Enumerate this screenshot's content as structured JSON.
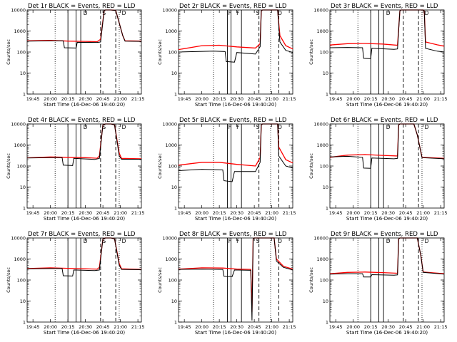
{
  "chart_data": {
    "type": "line",
    "layout": "3x3 grid",
    "x_tick_labels": [
      "19:45",
      "20:00",
      "20:15",
      "20:30",
      "20:45",
      "21:00",
      "21:15"
    ],
    "xlabel": "Start Time (16-Dec-06 19:40:20)",
    "ylabel": "Counts/sec",
    "ytick_labels": [
      "1",
      "10",
      "100",
      "1000",
      "10000"
    ],
    "ylim": [
      1,
      10000
    ],
    "yscale": "log",
    "xlim_minutes_after_1940": [
      0,
      98
    ],
    "series_colors": {
      "events": "#000000",
      "lld": "#ff0000"
    },
    "panels": [
      {
        "title": "Det 1r BLACK = Events, RED = LLD",
        "dotted_x": [
          24,
          79
        ],
        "solid_x": [
          35,
          42,
          46
        ],
        "dashed_x": [
          63,
          76
        ],
        "labels": [
          {
            "text": "D",
            "x": 50
          },
          {
            "text": "S",
            "x": 66
          },
          {
            "text": "D",
            "x": 83
          }
        ],
        "black": [
          [
            0,
            330
          ],
          [
            20,
            340
          ],
          [
            31,
            340
          ],
          [
            32,
            160
          ],
          [
            42,
            155
          ],
          [
            43,
            290
          ],
          [
            60,
            285
          ],
          [
            63,
            300
          ],
          [
            66,
            9000
          ],
          [
            67,
            10000
          ],
          [
            72,
            10000
          ],
          [
            76,
            9500
          ],
          [
            82,
            600
          ],
          [
            84,
            330
          ],
          [
            98,
            320
          ]
        ],
        "red": [
          [
            0,
            340
          ],
          [
            20,
            360
          ],
          [
            35,
            330
          ],
          [
            50,
            320
          ],
          [
            60,
            310
          ],
          [
            63,
            400
          ],
          [
            66,
            9000
          ],
          [
            67,
            10000
          ],
          [
            72,
            10000
          ],
          [
            76,
            9500
          ],
          [
            82,
            600
          ],
          [
            84,
            340
          ],
          [
            98,
            330
          ]
        ]
      },
      {
        "title": "Det 2r BLACK = Events, RED = LLD",
        "dotted_x": [
          30,
          79
        ],
        "solid_x": [
          42,
          45,
          54
        ],
        "dashed_x": [
          69,
          86
        ],
        "labels": [
          {
            "text": "F",
            "x": 44
          },
          {
            "text": "F",
            "x": 51
          },
          {
            "text": "S",
            "x": 68
          },
          {
            "text": "D",
            "x": 87
          }
        ],
        "black": [
          [
            0,
            100
          ],
          [
            30,
            110
          ],
          [
            40,
            105
          ],
          [
            41,
            35
          ],
          [
            48,
            33
          ],
          [
            50,
            95
          ],
          [
            66,
            80
          ],
          [
            70,
            180
          ],
          [
            71,
            9000
          ],
          [
            72,
            10000
          ],
          [
            85,
            10000
          ],
          [
            87,
            300
          ],
          [
            92,
            120
          ],
          [
            98,
            95
          ]
        ],
        "red": [
          [
            0,
            130
          ],
          [
            20,
            200
          ],
          [
            35,
            210
          ],
          [
            50,
            175
          ],
          [
            66,
            155
          ],
          [
            70,
            250
          ],
          [
            71,
            9000
          ],
          [
            72,
            10000
          ],
          [
            85,
            10000
          ],
          [
            87,
            600
          ],
          [
            92,
            200
          ],
          [
            98,
            140
          ]
        ]
      },
      {
        "title": "Det 3r BLACK = Events, RED = LLD",
        "dotted_x": [
          24,
          79
        ],
        "solid_x": [
          35,
          42,
          46
        ],
        "dashed_x": [
          63,
          76
        ],
        "labels": [
          {
            "text": "D",
            "x": 50
          },
          {
            "text": "D",
            "x": 83
          }
        ],
        "black": [
          [
            0,
            160
          ],
          [
            15,
            165
          ],
          [
            28,
            160
          ],
          [
            29,
            50
          ],
          [
            35,
            48
          ],
          [
            36,
            150
          ],
          [
            55,
            135
          ],
          [
            58,
            140
          ],
          [
            60,
            9000
          ],
          [
            61,
            10000
          ],
          [
            80,
            10000
          ],
          [
            81,
            9000
          ],
          [
            82,
            150
          ],
          [
            92,
            110
          ],
          [
            98,
            100
          ]
        ],
        "red": [
          [
            0,
            215
          ],
          [
            15,
            250
          ],
          [
            30,
            255
          ],
          [
            45,
            240
          ],
          [
            58,
            210
          ],
          [
            60,
            9000
          ],
          [
            61,
            10000
          ],
          [
            80,
            10000
          ],
          [
            81,
            9000
          ],
          [
            82,
            300
          ],
          [
            92,
            220
          ],
          [
            98,
            190
          ]
        ]
      },
      {
        "title": "Det 4r BLACK = Events, RED = LLD",
        "dotted_x": [
          24,
          79
        ],
        "solid_x": [
          35,
          42,
          46
        ],
        "dashed_x": [
          63,
          76
        ],
        "labels": [
          {
            "text": "D",
            "x": 50
          },
          {
            "text": "S",
            "x": 66
          },
          {
            "text": "D",
            "x": 83
          }
        ],
        "black": [
          [
            0,
            240
          ],
          [
            20,
            250
          ],
          [
            30,
            250
          ],
          [
            31,
            110
          ],
          [
            39,
            105
          ],
          [
            40,
            230
          ],
          [
            58,
            205
          ],
          [
            62,
            230
          ],
          [
            65,
            9000
          ],
          [
            67,
            10000
          ],
          [
            72,
            10000
          ],
          [
            75,
            9000
          ],
          [
            79,
            300
          ],
          [
            81,
            210
          ],
          [
            98,
            210
          ]
        ],
        "red": [
          [
            0,
            245
          ],
          [
            20,
            270
          ],
          [
            35,
            260
          ],
          [
            50,
            250
          ],
          [
            60,
            235
          ],
          [
            62,
            300
          ],
          [
            65,
            9000
          ],
          [
            67,
            10000
          ],
          [
            72,
            10000
          ],
          [
            75,
            9000
          ],
          [
            79,
            400
          ],
          [
            81,
            230
          ],
          [
            98,
            220
          ]
        ]
      },
      {
        "title": "Det 5r BLACK = Events, RED = LLD",
        "dotted_x": [
          30,
          79
        ],
        "solid_x": [
          42,
          45,
          54
        ],
        "dashed_x": [
          69,
          86
        ],
        "labels": [
          {
            "text": "F",
            "x": 44
          },
          {
            "text": "F",
            "x": 51
          },
          {
            "text": "S",
            "x": 68
          },
          {
            "text": "D",
            "x": 87
          }
        ],
        "black": [
          [
            0,
            60
          ],
          [
            20,
            70
          ],
          [
            38,
            65
          ],
          [
            39,
            20
          ],
          [
            46,
            18
          ],
          [
            48,
            55
          ],
          [
            66,
            55
          ],
          [
            70,
            150
          ],
          [
            71,
            9000
          ],
          [
            72,
            10000
          ],
          [
            85,
            10000
          ],
          [
            86,
            300
          ],
          [
            92,
            100
          ],
          [
            98,
            80
          ]
        ],
        "red": [
          [
            0,
            110
          ],
          [
            20,
            150
          ],
          [
            35,
            150
          ],
          [
            50,
            120
          ],
          [
            66,
            100
          ],
          [
            70,
            250
          ],
          [
            71,
            9000
          ],
          [
            72,
            10000
          ],
          [
            85,
            10000
          ],
          [
            86,
            800
          ],
          [
            92,
            200
          ],
          [
            98,
            140
          ]
        ]
      },
      {
        "title": "Det 6r BLACK = Events, RED = LLD",
        "dotted_x": [
          24,
          79
        ],
        "solid_x": [
          35,
          42,
          46
        ],
        "dashed_x": [
          63,
          76
        ],
        "labels": [
          {
            "text": "D",
            "x": 50
          },
          {
            "text": "D",
            "x": 83
          }
        ],
        "black": [
          [
            0,
            270
          ],
          [
            15,
            290
          ],
          [
            28,
            260
          ],
          [
            29,
            80
          ],
          [
            35,
            78
          ],
          [
            36,
            240
          ],
          [
            55,
            220
          ],
          [
            58,
            230
          ],
          [
            59,
            9000
          ],
          [
            60,
            10000
          ],
          [
            72,
            10000
          ],
          [
            75,
            3000
          ],
          [
            79,
            250
          ],
          [
            98,
            220
          ]
        ],
        "red": [
          [
            0,
            260
          ],
          [
            15,
            330
          ],
          [
            30,
            350
          ],
          [
            45,
            320
          ],
          [
            58,
            300
          ],
          [
            59,
            9000
          ],
          [
            60,
            10000
          ],
          [
            72,
            10000
          ],
          [
            75,
            3000
          ],
          [
            79,
            260
          ],
          [
            98,
            230
          ]
        ]
      },
      {
        "title": "Det 7r BLACK = Events, RED = LLD",
        "dotted_x": [
          24,
          79
        ],
        "solid_x": [
          35,
          42,
          46
        ],
        "dashed_x": [
          63,
          76
        ],
        "labels": [
          {
            "text": "D",
            "x": 50
          },
          {
            "text": "S",
            "x": 66
          },
          {
            "text": "D",
            "x": 83
          }
        ],
        "black": [
          [
            0,
            340
          ],
          [
            20,
            350
          ],
          [
            30,
            350
          ],
          [
            31,
            160
          ],
          [
            39,
            155
          ],
          [
            40,
            300
          ],
          [
            58,
            280
          ],
          [
            62,
            300
          ],
          [
            65,
            9000
          ],
          [
            67,
            10000
          ],
          [
            72,
            10000
          ],
          [
            75,
            9000
          ],
          [
            79,
            500
          ],
          [
            81,
            320
          ],
          [
            98,
            310
          ]
        ],
        "red": [
          [
            0,
            350
          ],
          [
            20,
            380
          ],
          [
            35,
            360
          ],
          [
            50,
            340
          ],
          [
            60,
            330
          ],
          [
            62,
            400
          ],
          [
            65,
            9000
          ],
          [
            67,
            10000
          ],
          [
            72,
            10000
          ],
          [
            75,
            9000
          ],
          [
            79,
            600
          ],
          [
            81,
            340
          ],
          [
            98,
            320
          ]
        ]
      },
      {
        "title": "Det 8r BLACK = Events, RED = LLD",
        "dotted_x": [
          30,
          79
        ],
        "solid_x": [
          42,
          45,
          54
        ],
        "dashed_x": [
          69,
          86
        ],
        "labels": [
          {
            "text": "F",
            "x": 44
          },
          {
            "text": "F",
            "x": 51
          },
          {
            "text": "S",
            "x": 68
          },
          {
            "text": "D",
            "x": 87
          }
        ],
        "black": [
          [
            0,
            320
          ],
          [
            20,
            330
          ],
          [
            38,
            320
          ],
          [
            39,
            150
          ],
          [
            46,
            145
          ],
          [
            48,
            300
          ],
          [
            62,
            290
          ],
          [
            63,
            1.2
          ],
          [
            64,
            9000
          ],
          [
            65,
            10000
          ],
          [
            82,
            10000
          ],
          [
            84,
            800
          ],
          [
            90,
            400
          ],
          [
            98,
            300
          ]
        ],
        "red": [
          [
            0,
            330
          ],
          [
            20,
            380
          ],
          [
            38,
            370
          ],
          [
            50,
            330
          ],
          [
            62,
            320
          ],
          [
            63,
            3
          ],
          [
            64,
            9000
          ],
          [
            65,
            10000
          ],
          [
            82,
            10000
          ],
          [
            84,
            1000
          ],
          [
            90,
            450
          ],
          [
            98,
            330
          ]
        ]
      },
      {
        "title": "Det 9r BLACK = Events, RED = LLD",
        "dotted_x": [
          24,
          79
        ],
        "solid_x": [
          35,
          42,
          46
        ],
        "dashed_x": [
          63,
          76
        ],
        "labels": [
          {
            "text": "D",
            "x": 50
          },
          {
            "text": "D",
            "x": 83
          }
        ],
        "black": [
          [
            0,
            190
          ],
          [
            15,
            200
          ],
          [
            28,
            200
          ],
          [
            29,
            140
          ],
          [
            35,
            140
          ],
          [
            36,
            180
          ],
          [
            55,
            170
          ],
          [
            58,
            175
          ],
          [
            59,
            9000
          ],
          [
            60,
            10000
          ],
          [
            75,
            10000
          ],
          [
            78,
            1500
          ],
          [
            80,
            230
          ],
          [
            98,
            190
          ]
        ],
        "red": [
          [
            0,
            200
          ],
          [
            15,
            230
          ],
          [
            30,
            240
          ],
          [
            45,
            225
          ],
          [
            58,
            210
          ],
          [
            59,
            9000
          ],
          [
            60,
            10000
          ],
          [
            75,
            10000
          ],
          [
            78,
            1500
          ],
          [
            80,
            240
          ],
          [
            98,
            200
          ]
        ]
      }
    ]
  }
}
